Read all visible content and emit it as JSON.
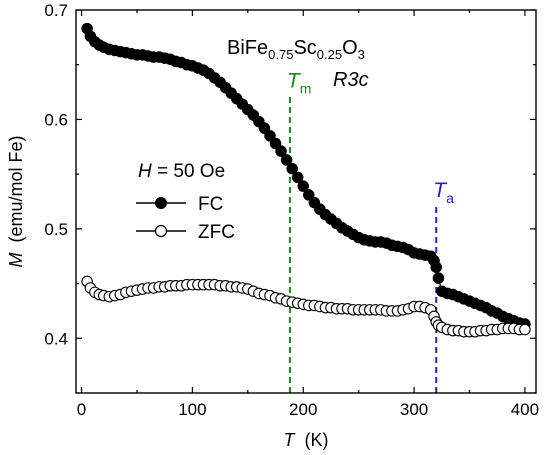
{
  "chart_data": {
    "type": "scatter",
    "xlabel_symbol": "T",
    "xlabel_unit": "(K)",
    "ylabel_symbol": "M",
    "ylabel_unit": "(emu/mol Fe)",
    "xlim": [
      -5,
      410
    ],
    "ylim": [
      0.35,
      0.7
    ],
    "x_ticks": [
      0,
      100,
      200,
      300,
      400
    ],
    "y_ticks": [
      0.4,
      0.5,
      0.6,
      0.7
    ],
    "compound": {
      "p1": "BiFe",
      "s1": "0.75",
      "p2": "Sc",
      "s2": "0.25",
      "p3": "O",
      "s3": "3"
    },
    "space_group": "R3c",
    "field_label": {
      "symbol": "H",
      "value": " = 50 Oe"
    },
    "legend_placement": "center-left",
    "vlines": [
      {
        "label": "T",
        "sub": "m",
        "x": 188,
        "color": "#1a8a1a"
      },
      {
        "label": "T",
        "sub": "a",
        "x": 320,
        "color": "#1f1fd6"
      }
    ],
    "series": [
      {
        "name": "FC",
        "marker": "filled-circle",
        "color": "#000000",
        "x": [
          5,
          8,
          12,
          16,
          20,
          25,
          30,
          35,
          40,
          45,
          50,
          55,
          60,
          65,
          70,
          75,
          80,
          85,
          90,
          95,
          100,
          105,
          110,
          115,
          120,
          125,
          130,
          135,
          140,
          145,
          150,
          155,
          160,
          165,
          170,
          175,
          180,
          185,
          190,
          195,
          200,
          205,
          210,
          215,
          220,
          225,
          230,
          235,
          240,
          245,
          250,
          255,
          260,
          265,
          270,
          275,
          280,
          285,
          290,
          295,
          300,
          305,
          310,
          315,
          318,
          320,
          322,
          325,
          330,
          335,
          340,
          345,
          350,
          355,
          360,
          365,
          370,
          375,
          380,
          385,
          390,
          395,
          400
        ],
        "y": [
          0.683,
          0.676,
          0.671,
          0.668,
          0.666,
          0.664,
          0.663,
          0.662,
          0.661,
          0.66,
          0.659,
          0.659,
          0.658,
          0.657,
          0.657,
          0.656,
          0.655,
          0.653,
          0.652,
          0.65,
          0.649,
          0.647,
          0.645,
          0.642,
          0.638,
          0.634,
          0.629,
          0.624,
          0.619,
          0.614,
          0.609,
          0.604,
          0.598,
          0.592,
          0.585,
          0.578,
          0.571,
          0.563,
          0.555,
          0.547,
          0.539,
          0.531,
          0.524,
          0.518,
          0.513,
          0.509,
          0.505,
          0.501,
          0.498,
          0.495,
          0.492,
          0.49,
          0.489,
          0.488,
          0.488,
          0.487,
          0.485,
          0.484,
          0.483,
          0.481,
          0.478,
          0.477,
          0.476,
          0.475,
          0.471,
          0.465,
          0.455,
          0.443,
          0.441,
          0.44,
          0.438,
          0.436,
          0.434,
          0.432,
          0.43,
          0.428,
          0.425,
          0.423,
          0.42,
          0.418,
          0.416,
          0.414,
          0.413
        ]
      },
      {
        "name": "ZFC",
        "marker": "open-circle",
        "color": "#000000",
        "x": [
          5,
          8,
          12,
          16,
          20,
          25,
          30,
          35,
          40,
          45,
          50,
          55,
          60,
          65,
          70,
          75,
          80,
          85,
          90,
          95,
          100,
          105,
          110,
          115,
          120,
          125,
          130,
          135,
          140,
          145,
          150,
          155,
          160,
          165,
          170,
          175,
          180,
          185,
          190,
          195,
          200,
          205,
          210,
          215,
          220,
          225,
          230,
          235,
          240,
          245,
          250,
          255,
          260,
          265,
          270,
          275,
          280,
          285,
          290,
          295,
          300,
          305,
          310,
          315,
          318,
          320,
          322,
          325,
          330,
          335,
          340,
          345,
          350,
          355,
          360,
          365,
          370,
          375,
          380,
          385,
          390,
          395,
          400
        ],
        "y": [
          0.452,
          0.446,
          0.442,
          0.44,
          0.439,
          0.438,
          0.439,
          0.44,
          0.442,
          0.443,
          0.444,
          0.445,
          0.446,
          0.446,
          0.447,
          0.447,
          0.448,
          0.448,
          0.448,
          0.449,
          0.449,
          0.449,
          0.449,
          0.449,
          0.449,
          0.448,
          0.448,
          0.447,
          0.447,
          0.446,
          0.445,
          0.443,
          0.441,
          0.44,
          0.439,
          0.437,
          0.436,
          0.434,
          0.433,
          0.432,
          0.431,
          0.43,
          0.43,
          0.429,
          0.428,
          0.428,
          0.427,
          0.427,
          0.427,
          0.426,
          0.426,
          0.426,
          0.426,
          0.426,
          0.426,
          0.425,
          0.425,
          0.425,
          0.426,
          0.427,
          0.429,
          0.429,
          0.428,
          0.426,
          0.42,
          0.415,
          0.412,
          0.41,
          0.408,
          0.407,
          0.407,
          0.406,
          0.406,
          0.406,
          0.407,
          0.407,
          0.408,
          0.408,
          0.409,
          0.409,
          0.409,
          0.408,
          0.408
        ]
      }
    ]
  }
}
